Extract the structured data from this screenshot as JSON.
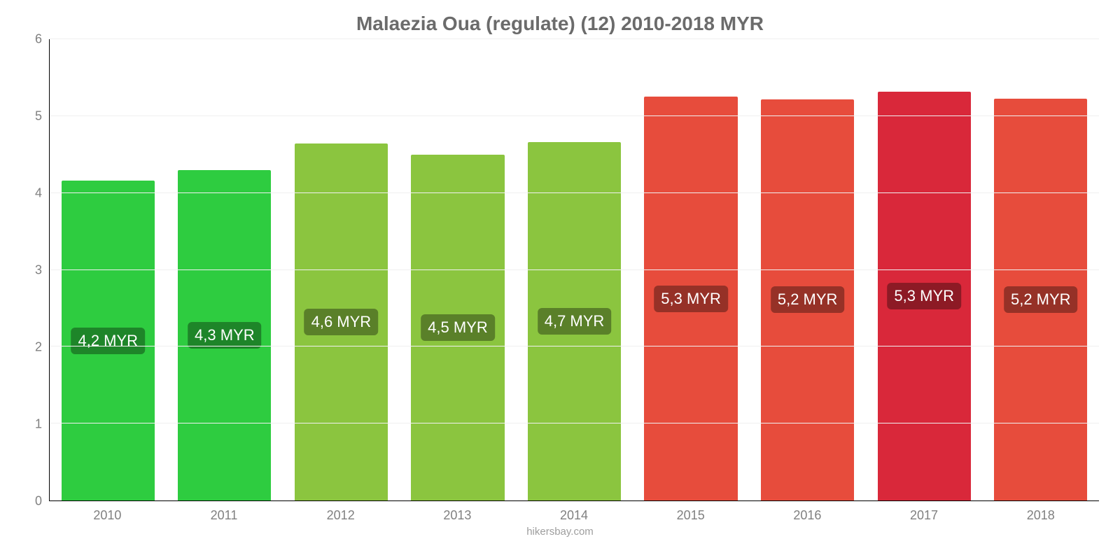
{
  "chart": {
    "type": "bar",
    "title": "Malaezia Oua (regulate) (12) 2010-2018 MYR",
    "title_color": "#6b6b6b",
    "title_fontsize": 28,
    "credit": "hikersbay.com",
    "credit_color": "#9e9e9e",
    "background_color": "#ffffff",
    "grid_color": "#f0f0f0",
    "axis_color": "#000000",
    "tick_label_color": "#808080",
    "tick_fontsize": 18,
    "y_axis": {
      "min": 0,
      "max": 6,
      "ticks": [
        0,
        1,
        2,
        3,
        4,
        5,
        6
      ]
    },
    "categories": [
      "2010",
      "2011",
      "2012",
      "2013",
      "2014",
      "2015",
      "2016",
      "2017",
      "2018"
    ],
    "values": [
      4.16,
      4.3,
      4.64,
      4.5,
      4.66,
      5.25,
      5.22,
      5.32,
      5.23
    ],
    "value_labels": [
      "4,2 MYR",
      "4,3 MYR",
      "4,6 MYR",
      "4,5 MYR",
      "4,7 MYR",
      "5,3 MYR",
      "5,2 MYR",
      "5,3 MYR",
      "5,2 MYR"
    ],
    "bar_colors": [
      "#2ecc40",
      "#2ecc40",
      "#8bc53f",
      "#8bc53f",
      "#8bc53f",
      "#e74c3c",
      "#e74c3c",
      "#d9283a",
      "#e74c3c"
    ],
    "bar_width": 0.8,
    "bar_label_color": "#ffffff",
    "bar_label_fontsize": 22,
    "bar_label_bg": "rgba(0,0,0,0.35)"
  }
}
